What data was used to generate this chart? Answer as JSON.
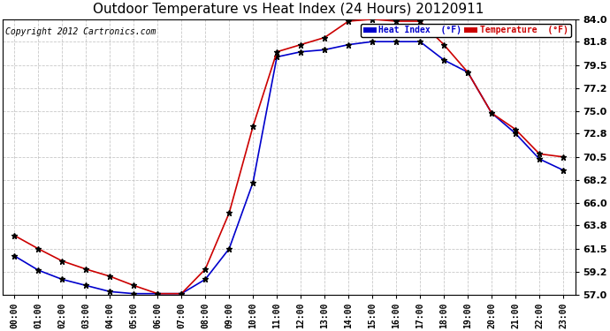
{
  "title": "Outdoor Temperature vs Heat Index (24 Hours) 20120911",
  "copyright": "Copyright 2012 Cartronics.com",
  "hours": [
    "00:00",
    "01:00",
    "02:00",
    "03:00",
    "04:00",
    "05:00",
    "06:00",
    "07:00",
    "08:00",
    "09:00",
    "10:00",
    "11:00",
    "12:00",
    "13:00",
    "14:00",
    "15:00",
    "16:00",
    "17:00",
    "18:00",
    "19:00",
    "20:00",
    "21:00",
    "22:00",
    "23:00"
  ],
  "heat_index": [
    60.8,
    59.4,
    58.5,
    57.9,
    57.3,
    57.1,
    57.1,
    57.1,
    58.5,
    61.5,
    68.0,
    80.3,
    80.8,
    81.0,
    81.5,
    81.8,
    81.8,
    81.8,
    80.0,
    78.8,
    74.8,
    72.8,
    70.3,
    69.2
  ],
  "temperature": [
    62.8,
    61.5,
    60.3,
    59.5,
    58.8,
    57.9,
    57.1,
    57.1,
    59.5,
    65.0,
    73.5,
    80.8,
    81.5,
    82.2,
    83.8,
    84.0,
    83.8,
    83.8,
    81.5,
    78.8,
    74.8,
    73.2,
    70.8,
    70.5
  ],
  "heat_index_color": "#0000CC",
  "temperature_color": "#CC0000",
  "background_color": "#FFFFFF",
  "grid_color": "#BBBBBB",
  "ylim": [
    57.0,
    84.0
  ],
  "yticks": [
    57.0,
    59.2,
    61.5,
    63.8,
    66.0,
    68.2,
    70.5,
    72.8,
    75.0,
    77.2,
    79.5,
    81.8,
    84.0
  ],
  "title_fontsize": 11,
  "copyright_fontsize": 7,
  "tick_fontsize": 7,
  "legend_heat_index": "Heat Index  (°F)",
  "legend_temperature": "Temperature  (°F)"
}
